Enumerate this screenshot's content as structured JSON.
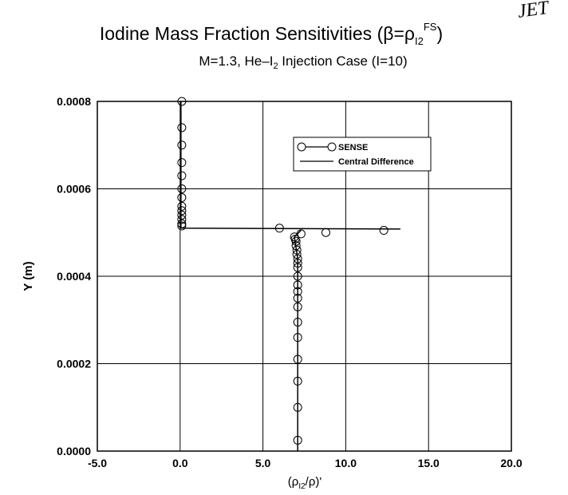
{
  "chart_data": {
    "type": "scatter",
    "title_parts": [
      "Iodine Mass Fraction Sensitivities (β=ρ",
      "I2",
      "FS",
      ")"
    ],
    "annotation": "JET",
    "subtitle_parts": [
      "M=1.3, He–I",
      "2",
      " Injection Case (I=10)"
    ],
    "x_label_parts": [
      "(ρ",
      "I2",
      "/ρ)'"
    ],
    "y_label": "Y (m)",
    "xlim": [
      -5,
      20
    ],
    "xticks": [
      {
        "value": -5,
        "label": "-5.0"
      },
      {
        "value": 0,
        "label": "0.0"
      },
      {
        "value": 5,
        "label": "5.0"
      },
      {
        "value": 10,
        "label": "10.0"
      },
      {
        "value": 15,
        "label": "15.0"
      },
      {
        "value": 20,
        "label": "20.0"
      }
    ],
    "ylim": [
      0,
      0.0008
    ],
    "yticks": [
      {
        "value": 0,
        "label": "0.0000"
      },
      {
        "value": 0.0002,
        "label": "0.0002"
      },
      {
        "value": 0.0004,
        "label": "0.0004"
      },
      {
        "value": 0.0006,
        "label": "0.0006"
      },
      {
        "value": 0.0008,
        "label": "0.0008"
      }
    ],
    "grid": true,
    "legend": "upper right",
    "series": [
      {
        "name": "SENSE",
        "color": "#000000",
        "marker": "circle",
        "x": [
          0.1,
          0.1,
          0.1,
          0.1,
          0.1,
          0.1,
          0.1,
          0.1,
          0.1,
          0.1,
          0.1,
          0.1,
          0.1,
          6.0,
          12.3,
          8.8,
          7.3,
          6.9,
          6.95,
          7.0,
          7.0,
          7.05,
          7.05,
          7.1,
          7.1,
          7.1,
          7.1,
          7.1,
          7.1,
          7.1,
          7.1,
          7.1,
          7.1,
          7.1,
          7.1,
          7.1,
          7.1
        ],
        "values": [
          0.0008,
          0.00074,
          0.0007,
          0.00066,
          0.00063,
          0.0006,
          0.00058,
          0.00056,
          0.00055,
          0.00054,
          0.00053,
          0.00052,
          0.000515,
          0.00051,
          0.000505,
          0.0005,
          0.000497,
          0.00049,
          0.000485,
          0.00048,
          0.00047,
          0.00046,
          0.00045,
          0.00044,
          0.00043,
          0.00042,
          0.0004,
          0.000365,
          0.00033,
          0.000295,
          0.00026,
          0.00021,
          0.00016,
          0.0001,
          2.5e-05,
          0.00038,
          0.00035
        ]
      },
      {
        "name": "Central Difference",
        "color": "#000000",
        "marker": "line",
        "x": [
          0.05,
          0.05,
          13.3,
          null,
          7.3,
          6.9,
          7.1,
          7.1
        ],
        "values": [
          0.0008,
          0.00051,
          0.000508,
          null,
          0.000505,
          0.00049,
          0.00044,
          0
        ]
      }
    ]
  }
}
